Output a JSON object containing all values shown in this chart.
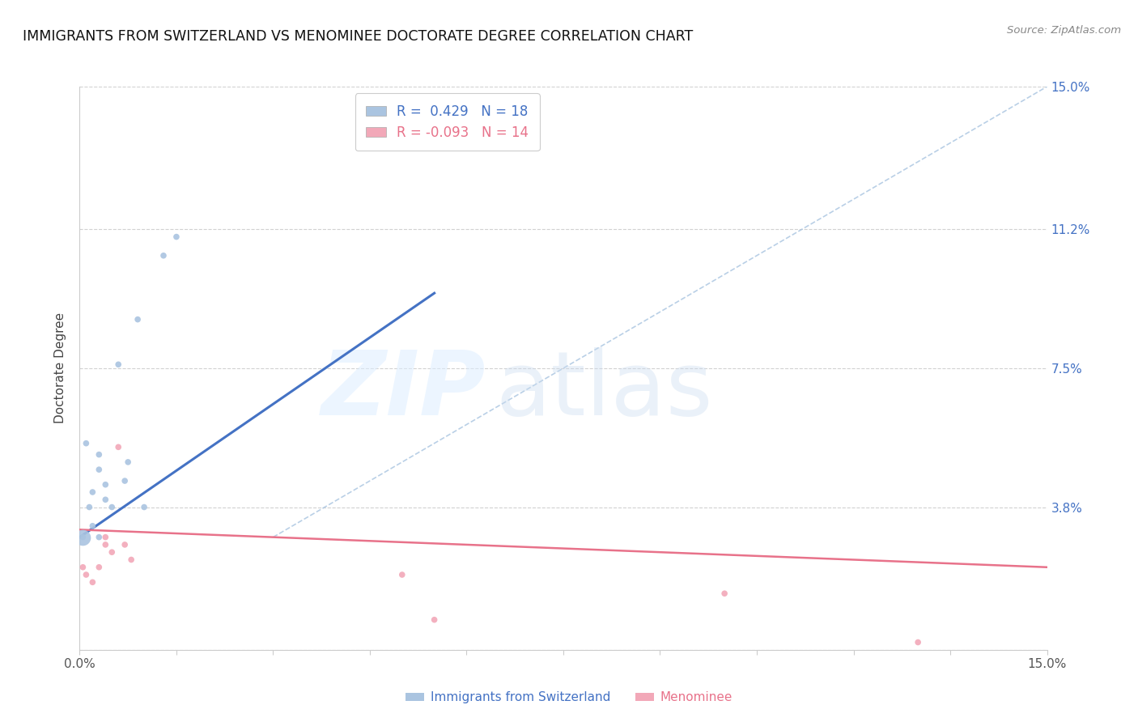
{
  "title": "IMMIGRANTS FROM SWITZERLAND VS MENOMINEE DOCTORATE DEGREE CORRELATION CHART",
  "source": "Source: ZipAtlas.com",
  "ylabel": "Doctorate Degree",
  "xmin": 0.0,
  "xmax": 0.15,
  "ymin": 0.0,
  "ymax": 0.15,
  "right_ytick_labels": [
    "15.0%",
    "11.2%",
    "7.5%",
    "3.8%",
    ""
  ],
  "right_ytick_positions": [
    0.15,
    0.112,
    0.075,
    0.038,
    0.0
  ],
  "legend_r1": "R =  0.429   N = 18",
  "legend_r2": "R = -0.093   N = 14",
  "blue_color": "#aac4e0",
  "pink_color": "#f2a8b8",
  "line_blue": "#4472c4",
  "line_pink": "#e8728a",
  "dashed_blue": "#a8c4e0",
  "blue_points_x": [
    0.0005,
    0.001,
    0.0015,
    0.002,
    0.002,
    0.003,
    0.003,
    0.004,
    0.004,
    0.005,
    0.006,
    0.007,
    0.0075,
    0.009,
    0.01,
    0.013,
    0.015,
    0.003
  ],
  "blue_points_y": [
    0.03,
    0.055,
    0.038,
    0.042,
    0.033,
    0.048,
    0.052,
    0.044,
    0.04,
    0.038,
    0.076,
    0.045,
    0.05,
    0.088,
    0.038,
    0.105,
    0.11,
    0.03
  ],
  "blue_sizes": [
    30,
    30,
    30,
    30,
    30,
    30,
    30,
    30,
    30,
    30,
    30,
    30,
    30,
    30,
    30,
    30,
    30,
    30
  ],
  "blue_big_x": [
    0.0005
  ],
  "blue_big_y": [
    0.03
  ],
  "blue_big_size": [
    200
  ],
  "pink_points_x": [
    0.0005,
    0.001,
    0.002,
    0.003,
    0.004,
    0.004,
    0.005,
    0.006,
    0.007,
    0.008,
    0.05,
    0.055,
    0.1,
    0.13
  ],
  "pink_points_y": [
    0.022,
    0.02,
    0.018,
    0.022,
    0.03,
    0.028,
    0.026,
    0.054,
    0.028,
    0.024,
    0.02,
    0.008,
    0.015,
    0.002
  ],
  "pink_sizes": [
    30,
    30,
    30,
    30,
    30,
    30,
    30,
    30,
    30,
    30,
    30,
    30,
    30,
    30
  ],
  "pink_big_x": [],
  "pink_big_y": [],
  "blue_line_x": [
    0.0,
    0.055
  ],
  "blue_line_y": [
    0.03,
    0.095
  ],
  "pink_line_x": [
    0.0,
    0.15
  ],
  "pink_line_y": [
    0.032,
    0.022
  ],
  "dashed_line_x": [
    0.03,
    0.15
  ],
  "dashed_line_y": [
    0.03,
    0.15
  ],
  "background_color": "#ffffff",
  "grid_color": "#cccccc"
}
